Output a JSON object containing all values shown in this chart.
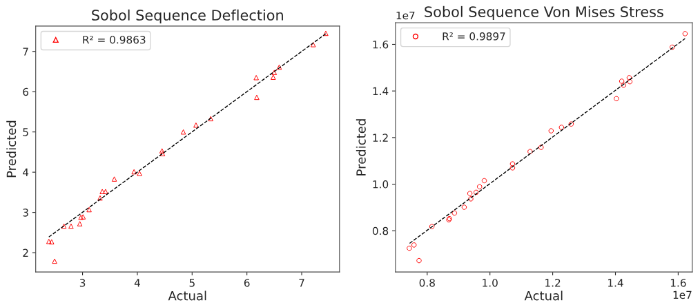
{
  "chart_data": [
    {
      "type": "scatter",
      "title": "Sobol Sequence Deflection",
      "xlabel": "Actual",
      "ylabel": "Predicted",
      "xlim": [
        2.145,
        7.69
      ],
      "ylim": [
        1.52,
        7.63
      ],
      "xticks": [
        3,
        4,
        5,
        6,
        7
      ],
      "yticks": [
        2,
        3,
        4,
        5,
        6,
        7
      ],
      "grid": false,
      "legend": "top left",
      "series": [
        {
          "name": "R² = 0.9863",
          "marker": "triangle",
          "color": "#ff0000",
          "x": [
            2.385,
            2.436,
            2.49,
            2.66,
            2.79,
            2.95,
            2.97,
            3.01,
            3.12,
            3.32,
            3.36,
            3.42,
            3.58,
            3.94,
            4.04,
            4.45,
            4.46,
            4.84,
            5.07,
            5.34,
            6.17,
            6.18,
            6.48,
            6.5,
            6.59,
            7.21,
            7.44
          ],
          "values": [
            2.28,
            2.27,
            1.79,
            2.66,
            2.66,
            2.72,
            2.88,
            2.89,
            3.07,
            3.36,
            3.52,
            3.52,
            3.83,
            4.01,
            3.97,
            4.53,
            4.46,
            5.0,
            5.17,
            5.33,
            6.35,
            5.86,
            6.36,
            6.48,
            6.61,
            7.17,
            7.45
          ]
        },
        {
          "type": "line",
          "line_style": "dashed",
          "color": "#000000",
          "x": [
            2.385,
            7.44
          ],
          "values": [
            2.39,
            7.44
          ]
        }
      ]
    },
    {
      "type": "scatter",
      "title": "Sobol Sequence Von Mises Stress",
      "xlabel": "Actual",
      "ylabel": "Predicted",
      "annotations": [
        "1e7",
        "1e7"
      ],
      "xlim": [
        0.699,
        1.645
      ],
      "ylim": [
        0.623,
        1.693
      ],
      "xticks": [
        0.8,
        {
          "value": 1.0,
          "label": "1.0"
        },
        1.2,
        1.4,
        1.6
      ],
      "yticks": [
        0.8,
        {
          "value": 1.0,
          "label": "1.0"
        },
        1.2,
        1.4,
        1.6
      ],
      "grid": false,
      "legend": "top left",
      "series": [
        {
          "name": "R² = 0.9897",
          "marker": "circle",
          "color": "#ff0000",
          "x": [
            0.743,
            0.758,
            0.774,
            0.815,
            0.869,
            0.871,
            0.887,
            0.918,
            0.936,
            0.939,
            0.956,
            0.967,
            0.982,
            1.072,
            1.072,
            1.128,
            1.163,
            1.195,
            1.228,
            1.259,
            1.403,
            1.42,
            1.426,
            1.444,
            1.446,
            1.581,
            1.622
          ],
          "values": [
            0.725,
            0.739,
            0.672,
            0.818,
            0.847,
            0.852,
            0.876,
            0.901,
            0.96,
            0.937,
            0.965,
            0.989,
            1.015,
            1.07,
            1.087,
            1.14,
            1.158,
            1.229,
            1.244,
            1.258,
            1.367,
            1.442,
            1.425,
            1.457,
            1.44,
            1.588,
            1.646
          ]
        },
        {
          "type": "line",
          "line_style": "dashed",
          "color": "#000000",
          "x": [
            0.744,
            1.622
          ],
          "values": [
            0.746,
            1.625
          ]
        }
      ]
    }
  ]
}
